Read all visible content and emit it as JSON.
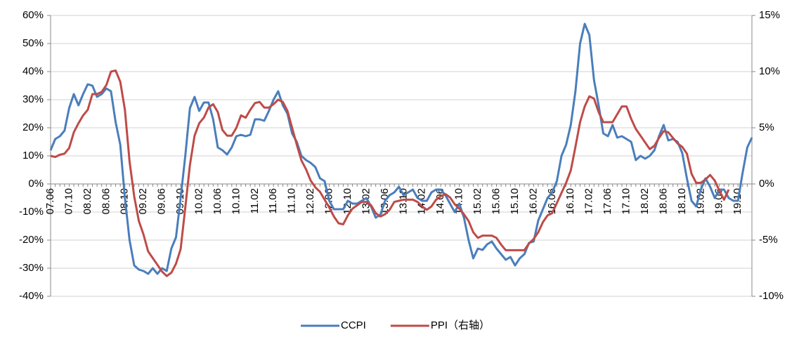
{
  "chart_data": {
    "type": "line",
    "categories": [
      "07.06",
      null,
      null,
      null,
      "07.10",
      null,
      null,
      null,
      "08.02",
      null,
      null,
      null,
      "08.06",
      null,
      null,
      null,
      "08.10",
      null,
      null,
      null,
      "09.02",
      null,
      null,
      null,
      "09.06",
      null,
      null,
      null,
      "09.10",
      null,
      null,
      null,
      "10.02",
      null,
      null,
      null,
      "10.06",
      null,
      null,
      null,
      "10.10",
      null,
      null,
      null,
      "11.02",
      null,
      null,
      null,
      "11.06",
      null,
      null,
      null,
      "11.10",
      null,
      null,
      null,
      "12.02",
      null,
      null,
      null,
      "12.06",
      null,
      null,
      null,
      "12.10",
      null,
      null,
      null,
      "13.02",
      null,
      null,
      null,
      "13.06",
      null,
      null,
      null,
      "13.10",
      null,
      null,
      null,
      "14.02",
      null,
      null,
      null,
      "14.06",
      null,
      null,
      null,
      "14.10",
      null,
      null,
      null,
      "15.02",
      null,
      null,
      null,
      "15.06",
      null,
      null,
      null,
      "15.10",
      null,
      null,
      null,
      "16.02",
      null,
      null,
      null,
      "16.06",
      null,
      null,
      null,
      "16.10",
      null,
      null,
      null,
      "17.02",
      null,
      null,
      null,
      "17.06",
      null,
      null,
      null,
      "17.10",
      null,
      null,
      null,
      "18.02",
      null,
      null,
      null,
      "18.06",
      null,
      null,
      null,
      "18.10",
      null,
      null,
      null,
      "19.02",
      null,
      null,
      null,
      "19.06",
      null,
      null,
      null,
      "19.10",
      null,
      null,
      null
    ],
    "series": [
      {
        "name": "CCPI",
        "color": "#4a7ebb",
        "values": [
          12,
          16,
          17,
          19,
          27,
          32,
          28,
          32,
          35.5,
          35,
          31,
          32,
          34,
          33,
          22,
          14,
          -5,
          -20,
          -29,
          -30.5,
          -31,
          -32,
          -30,
          -32,
          -30,
          -31,
          -23,
          -19,
          -5,
          10,
          27,
          31,
          26,
          29,
          29,
          23,
          13,
          12,
          10.5,
          13,
          17,
          17.5,
          17,
          17.5,
          23,
          23,
          22.5,
          26,
          30,
          33,
          28,
          25,
          18,
          15,
          10,
          8.5,
          7.5,
          6,
          2,
          1,
          -6,
          -9,
          -9,
          -9,
          -6,
          -7,
          -7,
          -6,
          -5,
          -8,
          -12,
          -11,
          -6,
          -4,
          -3,
          -1,
          -4,
          -3,
          -2,
          -5,
          -6,
          -6,
          -3,
          -2,
          -2,
          -4,
          -7,
          -10,
          -7,
          -12,
          -20,
          -26.5,
          -23,
          -23.5,
          -21.5,
          -20.5,
          -23,
          -25,
          -27,
          -26,
          -29,
          -26.5,
          -25,
          -21,
          -20.5,
          -13,
          -9,
          -5,
          -3,
          1,
          10,
          14,
          21,
          33,
          50,
          57,
          53,
          37,
          28,
          18,
          17,
          21,
          16.5,
          17,
          16,
          15,
          8.5,
          10,
          9,
          10,
          12,
          17,
          21,
          15.5,
          16,
          15,
          11,
          2,
          -6,
          -8,
          -2,
          2,
          -1,
          -5,
          -2,
          -2,
          -5,
          -6,
          -6,
          4,
          13,
          16.5
        ]
      },
      {
        "name": "PPI（右轴）",
        "color": "#be4b48",
        "axis": "y2",
        "values": [
          2.5,
          2.4,
          2.6,
          2.7,
          3.2,
          4.6,
          5.4,
          6.1,
          6.6,
          8,
          8,
          8.2,
          8.8,
          10,
          10.1,
          9.1,
          6.6,
          2,
          -1.1,
          -3.3,
          -4.5,
          -6,
          -6.6,
          -7.2,
          -7.8,
          -8.2,
          -7.9,
          -7.1,
          -5.8,
          -2.1,
          1.7,
          4.3,
          5.4,
          5.9,
          6.8,
          7.1,
          6.4,
          4.8,
          4.3,
          4.3,
          5,
          6.1,
          5.9,
          6.6,
          7.2,
          7.3,
          6.8,
          6.8,
          7.1,
          7.5,
          7.3,
          6.5,
          5,
          3.5,
          2.1,
          1.3,
          0.3,
          -0.3,
          -0.7,
          -1.4,
          -2.1,
          -2.9,
          -3.5,
          -3.6,
          -2.8,
          -2.2,
          -1.9,
          -1.6,
          -1.6,
          -1.9,
          -2.6,
          -2.9,
          -2.7,
          -2.3,
          -1.6,
          -1.5,
          -1.4,
          -1.4,
          -1.4,
          -1.6,
          -2,
          -2.3,
          -2,
          -1.4,
          -1.1,
          -0.9,
          -1.2,
          -1.8,
          -2.2,
          -2.7,
          -3.3,
          -4.3,
          -4.8,
          -4.6,
          -4.6,
          -4.6,
          -4.8,
          -5.4,
          -5.9,
          -5.9,
          -5.9,
          -5.9,
          -5.9,
          -5.3,
          -4.9,
          -4.3,
          -3.4,
          -2.8,
          -2.6,
          -1.7,
          -0.8,
          0.1,
          1.2,
          3.3,
          5.5,
          6.9,
          7.8,
          7.6,
          6.4,
          5.5,
          5.5,
          5.5,
          6.2,
          6.9,
          6.9,
          5.8,
          4.9,
          4.3,
          3.7,
          3.1,
          3.4,
          4.1,
          4.7,
          4.6,
          4.1,
          3.6,
          3.3,
          2.7,
          0.9,
          0.1,
          0.1,
          0.4,
          0.8,
          0.3,
          -0.6,
          -1.4,
          -0.5,
          null,
          null,
          null,
          null,
          null
        ]
      }
    ],
    "ylim": [
      -40,
      60
    ],
    "yticks": [
      {
        "value": -40,
        "label": "-40%"
      },
      {
        "value": -30,
        "label": "-30%"
      },
      {
        "value": -20,
        "label": "-20%"
      },
      {
        "value": -10,
        "label": "-10%"
      },
      {
        "value": 0,
        "label": "0%"
      },
      {
        "value": 10,
        "label": "10%"
      },
      {
        "value": 20,
        "label": "20%"
      },
      {
        "value": 30,
        "label": "30%"
      },
      {
        "value": 40,
        "label": "40%"
      },
      {
        "value": 50,
        "label": "50%"
      },
      {
        "value": 60,
        "label": "60%"
      }
    ],
    "y2lim": [
      -10,
      15
    ],
    "y2ticks": [
      {
        "value": -10,
        "label": "-10%"
      },
      {
        "value": -5,
        "label": "-5%"
      },
      {
        "value": 0,
        "label": "0%"
      },
      {
        "value": 5,
        "label": "5%"
      },
      {
        "value": 10,
        "label": "10%"
      },
      {
        "value": 15,
        "label": "15%"
      }
    ],
    "grid": true,
    "legend": "bottom"
  }
}
